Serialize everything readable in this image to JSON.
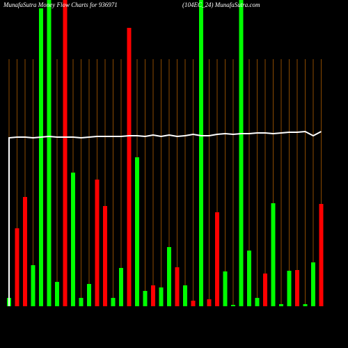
{
  "chart_data": {
    "type": "bar",
    "title": "MunafaSutra Money Flow  Charts for 936971",
    "subtitle": "(104EC_24) MunafaSutra.com",
    "values": [
      12,
      112,
      157,
      59,
      428,
      440,
      35,
      440,
      192,
      12,
      32,
      182,
      144,
      12,
      55,
      400,
      214,
      22,
      30,
      27,
      85,
      56,
      30,
      8,
      440,
      10,
      135,
      50,
      2,
      440,
      80,
      12,
      47,
      148,
      3,
      51,
      52,
      3,
      63,
      147
    ],
    "colors": [
      "#00ff00",
      "#ff0000",
      "#ff0000",
      "#00ff00",
      "#00ff00",
      "#00ff00",
      "#00ff00",
      "#ff0000",
      "#00ff00",
      "#00ff00",
      "#00ff00",
      "#ff0000",
      "#ff0000",
      "#00ff00",
      "#00ff00",
      "#ff0000",
      "#00ff00",
      "#00ff00",
      "#ff0000",
      "#00ff00",
      "#00ff00",
      "#ff0000",
      "#00ff00",
      "#ff0000",
      "#00ff00",
      "#ff0000",
      "#ff0000",
      "#00ff00",
      "#00ff00",
      "#00ff00",
      "#00ff00",
      "#00ff00",
      "#ff0000",
      "#00ff00",
      "#00ff00",
      "#00ff00",
      "#ff0000",
      "#00ff00",
      "#00ff00",
      "#ff0000"
    ],
    "line": {
      "color": "#ffffff",
      "values": [
        242,
        243,
        243,
        242,
        243,
        244,
        243,
        243,
        243,
        242,
        243,
        244,
        244,
        244,
        244,
        245,
        245,
        244,
        246,
        244,
        246,
        244,
        245,
        247,
        245,
        245,
        247,
        248,
        247,
        248,
        248,
        249,
        249,
        248,
        249,
        250,
        250,
        251,
        245,
        251
      ]
    },
    "ylim": [
      0,
      440
    ],
    "grid": true,
    "grid_color": "#8b4a00"
  }
}
